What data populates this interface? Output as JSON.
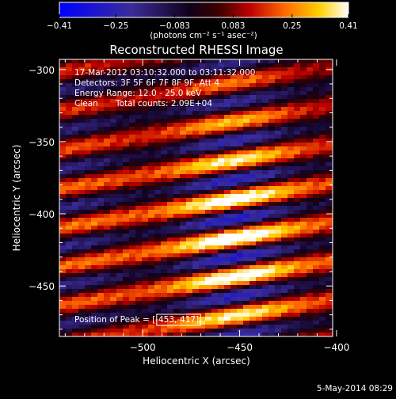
{
  "chart_data": {
    "type": "heatmap",
    "title": "Reconstructed RHESSI Image",
    "xlabel": "Heliocentric X (arcsec)",
    "ylabel": "Heliocentric Y (arcsec)",
    "xlim": [
      -543,
      -402
    ],
    "ylim": [
      -485,
      -293
    ],
    "x_ticks": [
      -500,
      -450,
      -400
    ],
    "y_ticks": [
      -300,
      -350,
      -400,
      -450
    ],
    "colorbar": {
      "min": -0.41,
      "max": 0.41,
      "ticks": [
        -0.41,
        -0.25,
        -0.083,
        0.083,
        0.25,
        0.41
      ],
      "tick_labels": [
        "-0.41",
        "-0.25",
        "-0.083",
        "0.083",
        "0.25",
        "0.41"
      ],
      "units_label": "(photons cm⁻² s⁻¹ asec⁻²)",
      "colormap": "blue-black-red-yellow-white"
    },
    "annotations": {
      "time_range": "17-Mar-2012 03:10:32.000 to 03:11:32.000",
      "detectors": "Detectors: 3F 5F 6F 7F 8F 9F, Att 4",
      "energy": "Energy Range: 12.0 - 25.0 keV",
      "method": "Clean",
      "total_counts": "Total counts: 2.09E+04",
      "peak": "Position of Peak = [-453,-417]"
    },
    "peak_position": [
      -453,
      -417
    ],
    "grid": false
  },
  "footer": {
    "timestamp": "5-May-2014 08:29"
  },
  "colors": {
    "background": "#000000",
    "text": "#ffffff"
  }
}
